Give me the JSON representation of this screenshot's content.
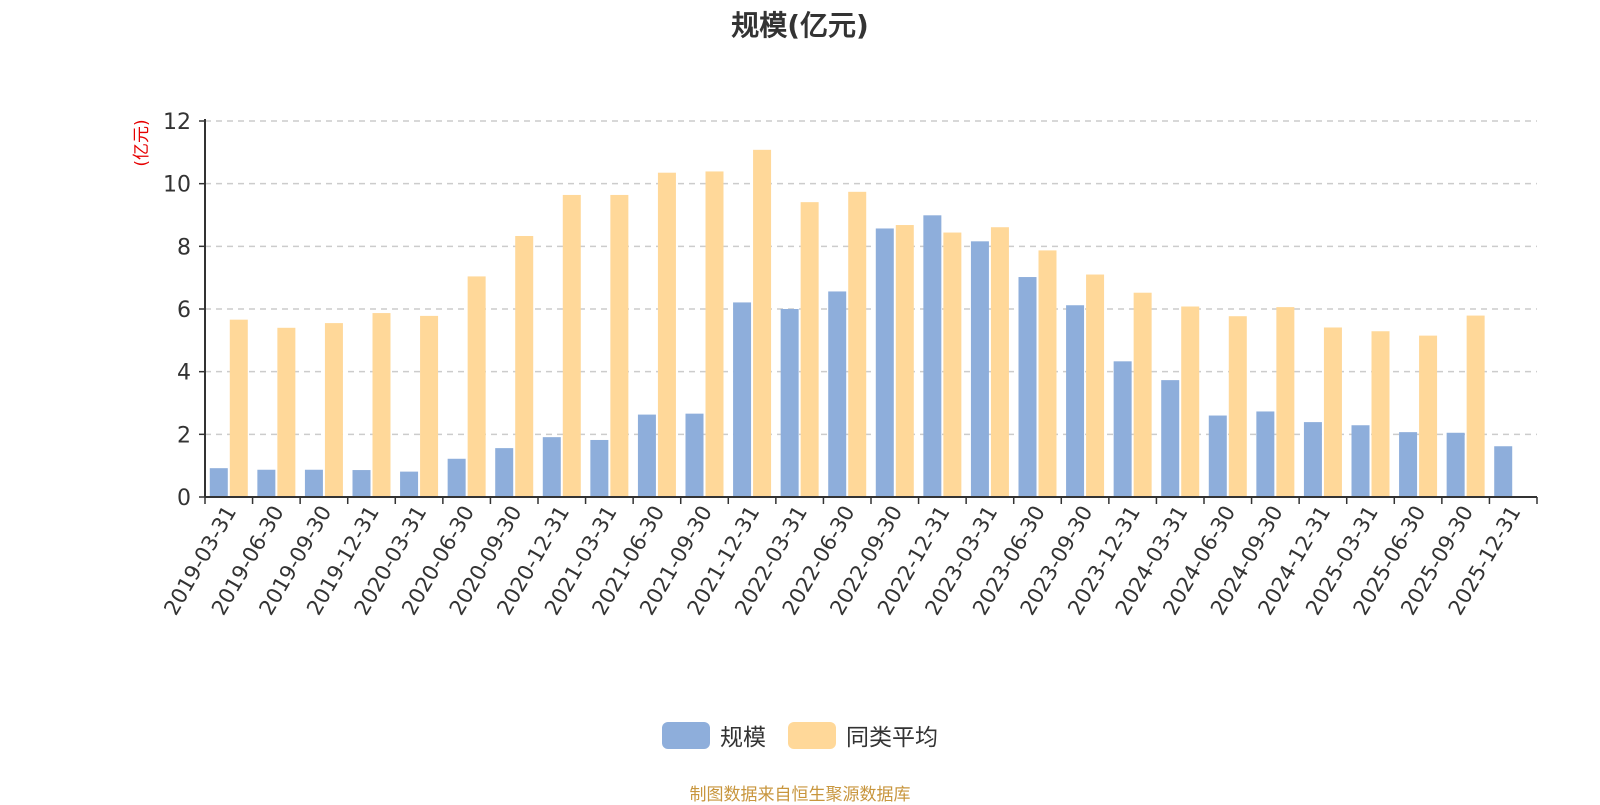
{
  "chart_data": {
    "type": "bar",
    "title": "规模(亿元)",
    "ylabel": "(亿元)",
    "xlabel": "",
    "ylim": [
      0,
      12
    ],
    "yticks": [
      0,
      2,
      4,
      6,
      8,
      10,
      12
    ],
    "grid": true,
    "legend_position": "bottom-center",
    "categories": [
      "2019-03-31",
      "2019-06-30",
      "2019-09-30",
      "2019-12-31",
      "2020-03-31",
      "2020-06-30",
      "2020-09-30",
      "2020-12-31",
      "2021-03-31",
      "2021-06-30",
      "2021-09-30",
      "2021-12-31",
      "2022-03-31",
      "2022-06-30",
      "2022-09-30",
      "2022-12-31",
      "2023-03-31",
      "2023-06-30",
      "2023-09-30",
      "2023-12-31",
      "2024-03-31",
      "2024-06-30",
      "2024-09-30",
      "2024-12-31",
      "2025-03-31",
      "2025-06-30",
      "2025-09-30",
      "2025-12-31"
    ],
    "series": [
      {
        "name": "规模",
        "color": "#8eaedb",
        "values": [
          0.92,
          0.87,
          0.87,
          0.86,
          0.81,
          1.22,
          1.56,
          1.91,
          1.82,
          2.63,
          2.66,
          6.21,
          6.0,
          6.56,
          8.57,
          8.99,
          8.16,
          7.02,
          6.12,
          4.33,
          3.73,
          2.6,
          2.73,
          2.39,
          2.29,
          2.07,
          2.05,
          1.62
        ]
      },
      {
        "name": "同类平均",
        "color": "#ffd899",
        "values": [
          5.66,
          5.4,
          5.55,
          5.87,
          5.78,
          7.04,
          8.33,
          9.64,
          9.64,
          10.35,
          10.39,
          11.08,
          9.41,
          9.74,
          8.68,
          8.44,
          8.61,
          7.87,
          7.1,
          6.52,
          6.08,
          5.77,
          6.06,
          5.41,
          5.29,
          5.15,
          5.79,
          null
        ]
      }
    ]
  },
  "source_note": "制图数据来自恒生聚源数据库"
}
